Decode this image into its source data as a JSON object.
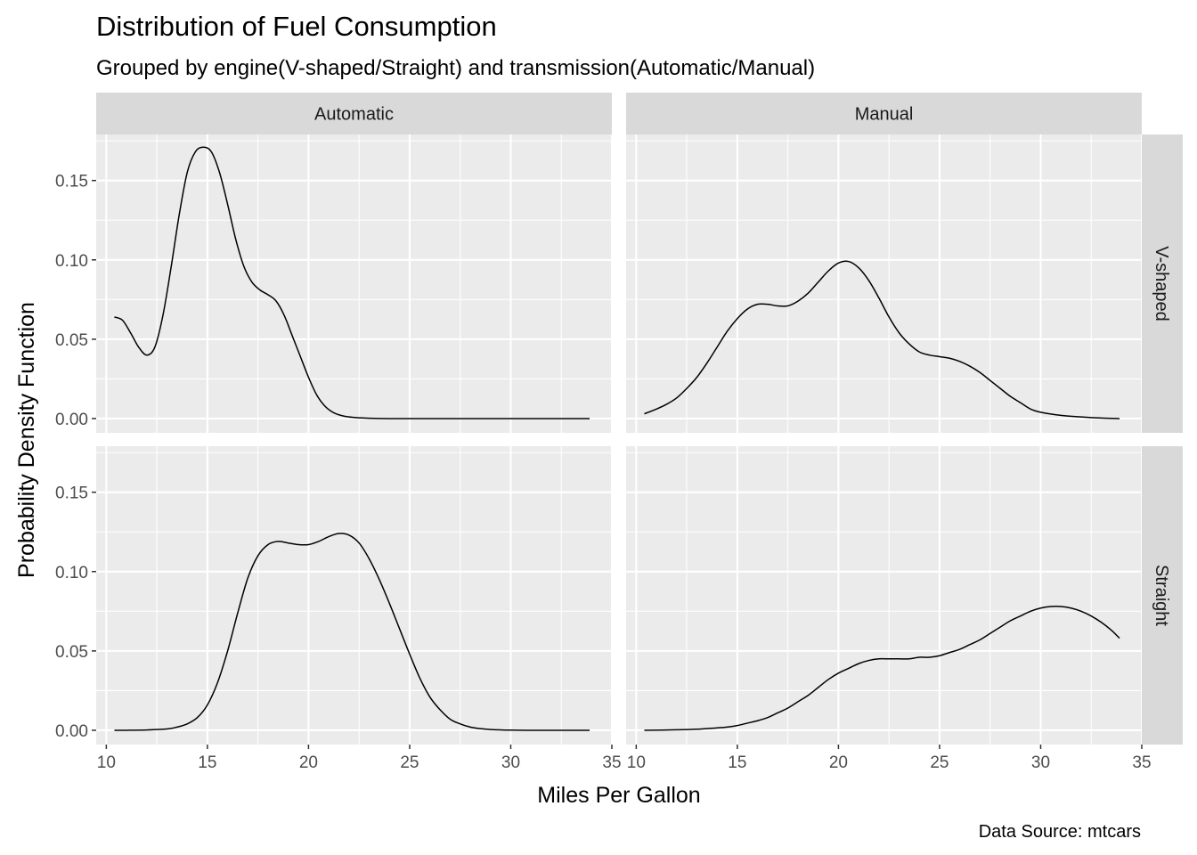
{
  "chart_data": {
    "type": "line",
    "title": "Distribution of Fuel Consumption",
    "subtitle": "Grouped by engine(V-shaped/Straight) and transmission(Automatic/Manual)",
    "xlabel": "Miles Per Gallon",
    "ylabel": "Probability Density Function",
    "caption": "Data Source: mtcars",
    "xlim": [
      9.5,
      35
    ],
    "ylim": [
      -0.009,
      0.179
    ],
    "xticks": [
      10,
      15,
      20,
      25,
      30,
      35
    ],
    "yticks": [
      0.0,
      0.05,
      0.1,
      0.15
    ],
    "xtick_labels": [
      "10",
      "15",
      "20",
      "25",
      "30",
      "35"
    ],
    "ytick_labels": [
      "0.00",
      "0.05",
      "0.10",
      "0.15"
    ],
    "grid": true,
    "legend": "none",
    "facet_cols": [
      "Automatic",
      "Manual"
    ],
    "facet_rows": [
      "V-shaped",
      "Straight"
    ],
    "panels": [
      {
        "col": "Automatic",
        "row": "V-shaped",
        "x": [
          10.4,
          10.8,
          11.2,
          11.6,
          12.0,
          12.4,
          12.8,
          13.2,
          13.6,
          14.0,
          14.4,
          14.8,
          15.2,
          15.6,
          16.0,
          16.4,
          16.8,
          17.2,
          17.6,
          18.0,
          18.4,
          18.8,
          19.2,
          19.6,
          20.0,
          20.4,
          20.8,
          21.2,
          21.6,
          22.0,
          22.5,
          23.0,
          24.0,
          26.0,
          28.0,
          30.0,
          32.0,
          33.9
        ],
        "y": [
          0.064,
          0.062,
          0.054,
          0.045,
          0.04,
          0.045,
          0.065,
          0.095,
          0.128,
          0.155,
          0.168,
          0.171,
          0.168,
          0.155,
          0.135,
          0.113,
          0.096,
          0.086,
          0.081,
          0.078,
          0.074,
          0.065,
          0.052,
          0.039,
          0.026,
          0.015,
          0.008,
          0.004,
          0.002,
          0.001,
          0.0005,
          0.0002,
          0.0,
          0.0,
          0.0,
          0.0,
          0.0,
          0.0
        ]
      },
      {
        "col": "Manual",
        "row": "V-shaped",
        "x": [
          10.4,
          11.0,
          11.5,
          12.0,
          12.5,
          13.0,
          13.5,
          14.0,
          14.5,
          15.0,
          15.5,
          16.0,
          16.5,
          17.0,
          17.5,
          18.0,
          18.5,
          19.0,
          19.5,
          20.0,
          20.5,
          21.0,
          21.5,
          22.0,
          22.5,
          23.0,
          23.5,
          24.0,
          24.5,
          25.0,
          25.5,
          26.0,
          26.5,
          27.0,
          27.5,
          28.0,
          28.5,
          29.0,
          29.5,
          30.0,
          31.0,
          32.0,
          33.0,
          33.9
        ],
        "y": [
          0.003,
          0.006,
          0.009,
          0.013,
          0.019,
          0.026,
          0.035,
          0.045,
          0.055,
          0.063,
          0.069,
          0.072,
          0.072,
          0.071,
          0.071,
          0.074,
          0.079,
          0.086,
          0.093,
          0.098,
          0.099,
          0.095,
          0.087,
          0.076,
          0.064,
          0.054,
          0.047,
          0.042,
          0.04,
          0.039,
          0.038,
          0.036,
          0.033,
          0.029,
          0.024,
          0.019,
          0.014,
          0.01,
          0.006,
          0.004,
          0.002,
          0.001,
          0.0003,
          0.0
        ]
      },
      {
        "col": "Automatic",
        "row": "Straight",
        "x": [
          10.4,
          11.0,
          12.0,
          13.0,
          13.5,
          14.0,
          14.5,
          15.0,
          15.5,
          16.0,
          16.5,
          17.0,
          17.5,
          18.0,
          18.5,
          19.0,
          19.5,
          20.0,
          20.5,
          21.0,
          21.5,
          22.0,
          22.5,
          23.0,
          23.5,
          24.0,
          24.5,
          25.0,
          25.5,
          26.0,
          26.5,
          27.0,
          27.5,
          28.0,
          28.5,
          29.0,
          30.0,
          31.0,
          32.0,
          33.9
        ],
        "y": [
          0.0,
          0.0,
          0.0002,
          0.0008,
          0.002,
          0.004,
          0.008,
          0.016,
          0.03,
          0.05,
          0.074,
          0.096,
          0.11,
          0.117,
          0.119,
          0.118,
          0.117,
          0.117,
          0.119,
          0.122,
          0.124,
          0.123,
          0.118,
          0.108,
          0.095,
          0.08,
          0.064,
          0.048,
          0.033,
          0.021,
          0.013,
          0.007,
          0.004,
          0.002,
          0.001,
          0.0005,
          0.0001,
          0.0,
          0.0,
          0.0
        ]
      },
      {
        "col": "Manual",
        "row": "Straight",
        "x": [
          10.4,
          12.0,
          13.0,
          14.0,
          14.5,
          15.0,
          15.5,
          16.0,
          16.5,
          17.0,
          17.5,
          18.0,
          18.5,
          19.0,
          19.5,
          20.0,
          20.5,
          21.0,
          21.5,
          22.0,
          22.5,
          23.0,
          23.5,
          24.0,
          24.5,
          25.0,
          25.5,
          26.0,
          26.5,
          27.0,
          27.5,
          28.0,
          28.5,
          29.0,
          29.5,
          30.0,
          30.5,
          31.0,
          31.5,
          32.0,
          32.5,
          33.0,
          33.5,
          33.9
        ],
        "y": [
          0.0,
          0.0003,
          0.0007,
          0.0015,
          0.002,
          0.003,
          0.0045,
          0.006,
          0.008,
          0.011,
          0.014,
          0.018,
          0.022,
          0.027,
          0.032,
          0.036,
          0.039,
          0.042,
          0.044,
          0.045,
          0.045,
          0.045,
          0.045,
          0.046,
          0.046,
          0.047,
          0.049,
          0.051,
          0.054,
          0.057,
          0.061,
          0.065,
          0.069,
          0.072,
          0.075,
          0.077,
          0.078,
          0.078,
          0.077,
          0.075,
          0.072,
          0.068,
          0.063,
          0.058
        ]
      }
    ]
  }
}
